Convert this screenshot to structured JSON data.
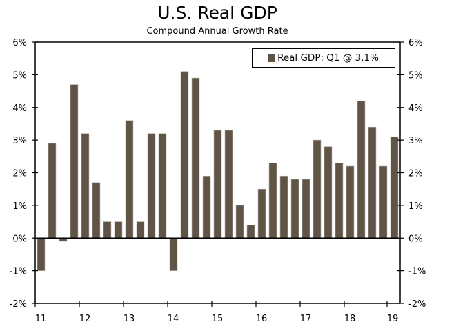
{
  "chart_data": {
    "type": "bar",
    "title": "U.S. Real GDP",
    "subtitle": "Compound Annual Growth Rate",
    "xlabel": "",
    "ylabel": "",
    "ylim": [
      -2,
      6
    ],
    "yticks": [
      -2,
      -1,
      0,
      1,
      2,
      3,
      4,
      5,
      6
    ],
    "ytick_labels": [
      "-2%",
      "-1%",
      "0%",
      "1%",
      "2%",
      "3%",
      "4%",
      "5%",
      "6%"
    ],
    "y_axis_sides": [
      "left",
      "right"
    ],
    "xtick_labels": [
      "11",
      "12",
      "13",
      "14",
      "15",
      "16",
      "17",
      "18",
      "19"
    ],
    "grid": false,
    "legend": {
      "position": "top-right",
      "entries": [
        "Real GDP: Q1 @ 3.1%"
      ]
    },
    "bar_color": "#5f5446",
    "categories": [
      "2011 Q1",
      "2011 Q2",
      "2011 Q3",
      "2011 Q4",
      "2012 Q1",
      "2012 Q2",
      "2012 Q3",
      "2012 Q4",
      "2013 Q1",
      "2013 Q2",
      "2013 Q3",
      "2013 Q4",
      "2014 Q1",
      "2014 Q2",
      "2014 Q3",
      "2014 Q4",
      "2015 Q1",
      "2015 Q2",
      "2015 Q3",
      "2015 Q4",
      "2016 Q1",
      "2016 Q2",
      "2016 Q3",
      "2016 Q4",
      "2017 Q1",
      "2017 Q2",
      "2017 Q3",
      "2017 Q4",
      "2018 Q1",
      "2018 Q2",
      "2018 Q3",
      "2018 Q4",
      "2019 Q1"
    ],
    "series": [
      {
        "name": "Real GDP: Q1 @ 3.1%",
        "values": [
          -1.0,
          2.9,
          -0.1,
          4.7,
          3.2,
          1.7,
          0.5,
          0.5,
          3.6,
          0.5,
          3.2,
          3.2,
          -1.0,
          5.1,
          4.9,
          1.9,
          3.3,
          3.3,
          1.0,
          0.4,
          1.5,
          2.3,
          1.9,
          1.8,
          1.8,
          3.0,
          2.8,
          2.3,
          2.2,
          4.2,
          3.4,
          2.2,
          3.1
        ]
      }
    ]
  }
}
